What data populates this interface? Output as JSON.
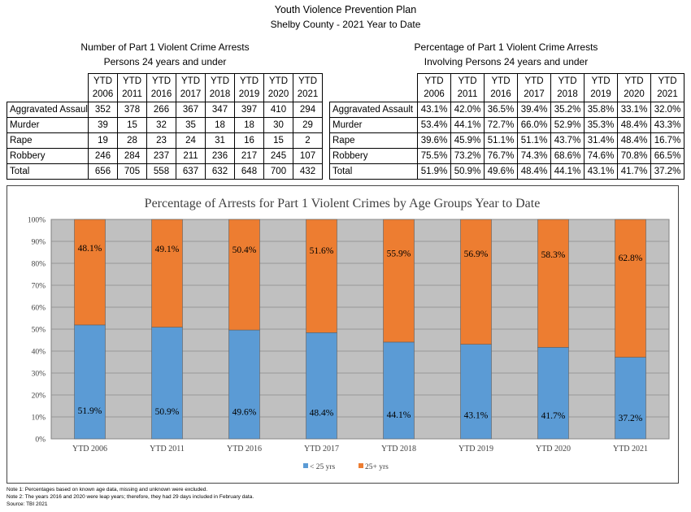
{
  "header": {
    "title": "Youth Violence Prevention Plan",
    "subtitle": "Shelby County - 2021 Year to Date"
  },
  "left_table": {
    "title_line1": "Number of Part 1 Violent Crime Arrests",
    "title_line2": "Persons 24 years and under",
    "columns": [
      [
        "YTD",
        "2006"
      ],
      [
        "YTD",
        "2011"
      ],
      [
        "YTD",
        "2016"
      ],
      [
        "YTD",
        "2017"
      ],
      [
        "YTD",
        "2018"
      ],
      [
        "YTD",
        "2019"
      ],
      [
        "YTD",
        "2020"
      ],
      [
        "YTD",
        "2021"
      ]
    ],
    "rows": [
      {
        "label": "Aggravated Assault",
        "values": [
          "352",
          "378",
          "266",
          "367",
          "347",
          "397",
          "410",
          "294"
        ]
      },
      {
        "label": "Murder",
        "values": [
          "39",
          "15",
          "32",
          "35",
          "18",
          "18",
          "30",
          "29"
        ]
      },
      {
        "label": "Rape",
        "values": [
          "19",
          "28",
          "23",
          "24",
          "31",
          "16",
          "15",
          "2"
        ]
      },
      {
        "label": "Robbery",
        "values": [
          "246",
          "284",
          "237",
          "211",
          "236",
          "217",
          "245",
          "107"
        ]
      },
      {
        "label": "Total",
        "values": [
          "656",
          "705",
          "558",
          "637",
          "632",
          "648",
          "700",
          "432"
        ]
      }
    ]
  },
  "right_table": {
    "title_line1": "Percentage of Part 1 Violent Crime Arrests",
    "title_line2": "Involving Persons 24 years and under",
    "columns": [
      [
        "YTD",
        "2006"
      ],
      [
        "YTD",
        "2011"
      ],
      [
        "YTD",
        "2016"
      ],
      [
        "YTD",
        "2017"
      ],
      [
        "YTD",
        "2018"
      ],
      [
        "YTD",
        "2019"
      ],
      [
        "YTD",
        "2020"
      ],
      [
        "YTD",
        "2021"
      ]
    ],
    "rows": [
      {
        "label": "Aggravated Assault",
        "values": [
          "43.1%",
          "42.0%",
          "36.5%",
          "39.4%",
          "35.2%",
          "35.8%",
          "33.1%",
          "32.0%"
        ]
      },
      {
        "label": "Murder",
        "values": [
          "53.4%",
          "44.1%",
          "72.7%",
          "66.0%",
          "52.9%",
          "35.3%",
          "48.4%",
          "43.3%"
        ]
      },
      {
        "label": "Rape",
        "values": [
          "39.6%",
          "45.9%",
          "51.1%",
          "51.1%",
          "43.7%",
          "31.4%",
          "48.4%",
          "16.7%"
        ]
      },
      {
        "label": "Robbery",
        "values": [
          "75.5%",
          "73.2%",
          "76.7%",
          "74.3%",
          "68.6%",
          "74.6%",
          "70.8%",
          "66.5%"
        ]
      },
      {
        "label": "Total",
        "values": [
          "51.9%",
          "50.9%",
          "49.6%",
          "48.4%",
          "44.1%",
          "43.1%",
          "41.7%",
          "37.2%"
        ]
      }
    ]
  },
  "chart_data": {
    "type": "bar",
    "stacked": true,
    "title": "Percentage of Arrests for Part 1 Violent Crimes by Age Groups Year to Date",
    "categories": [
      "YTD 2006",
      "YTD 2011",
      "YTD 2016",
      "YTD 2017",
      "YTD 2018",
      "YTD 2019",
      "YTD 2020",
      "YTD 2021"
    ],
    "series": [
      {
        "name": "< 25 yrs",
        "color": "#5b9bd5",
        "values": [
          51.9,
          50.9,
          49.6,
          48.4,
          44.1,
          43.1,
          41.7,
          37.2
        ]
      },
      {
        "name": "25+ yrs",
        "color": "#ed7d31",
        "values": [
          48.1,
          49.1,
          50.4,
          51.6,
          55.9,
          56.9,
          58.3,
          62.8
        ]
      }
    ],
    "ylim": [
      0,
      100
    ],
    "yticks": [
      "0%",
      "10%",
      "20%",
      "30%",
      "40%",
      "50%",
      "60%",
      "70%",
      "80%",
      "90%",
      "100%"
    ],
    "plot_background": "#c0c0c0",
    "grid": true,
    "legend_position": "bottom"
  },
  "notes": [
    "Note 1: Percentages based on known age data, missing and unknown were excluded.",
    "Note 2: The years 2016 and 2020 were leap years; therefore, they had 29 days included in February data.",
    "Source: TBI 2021"
  ]
}
